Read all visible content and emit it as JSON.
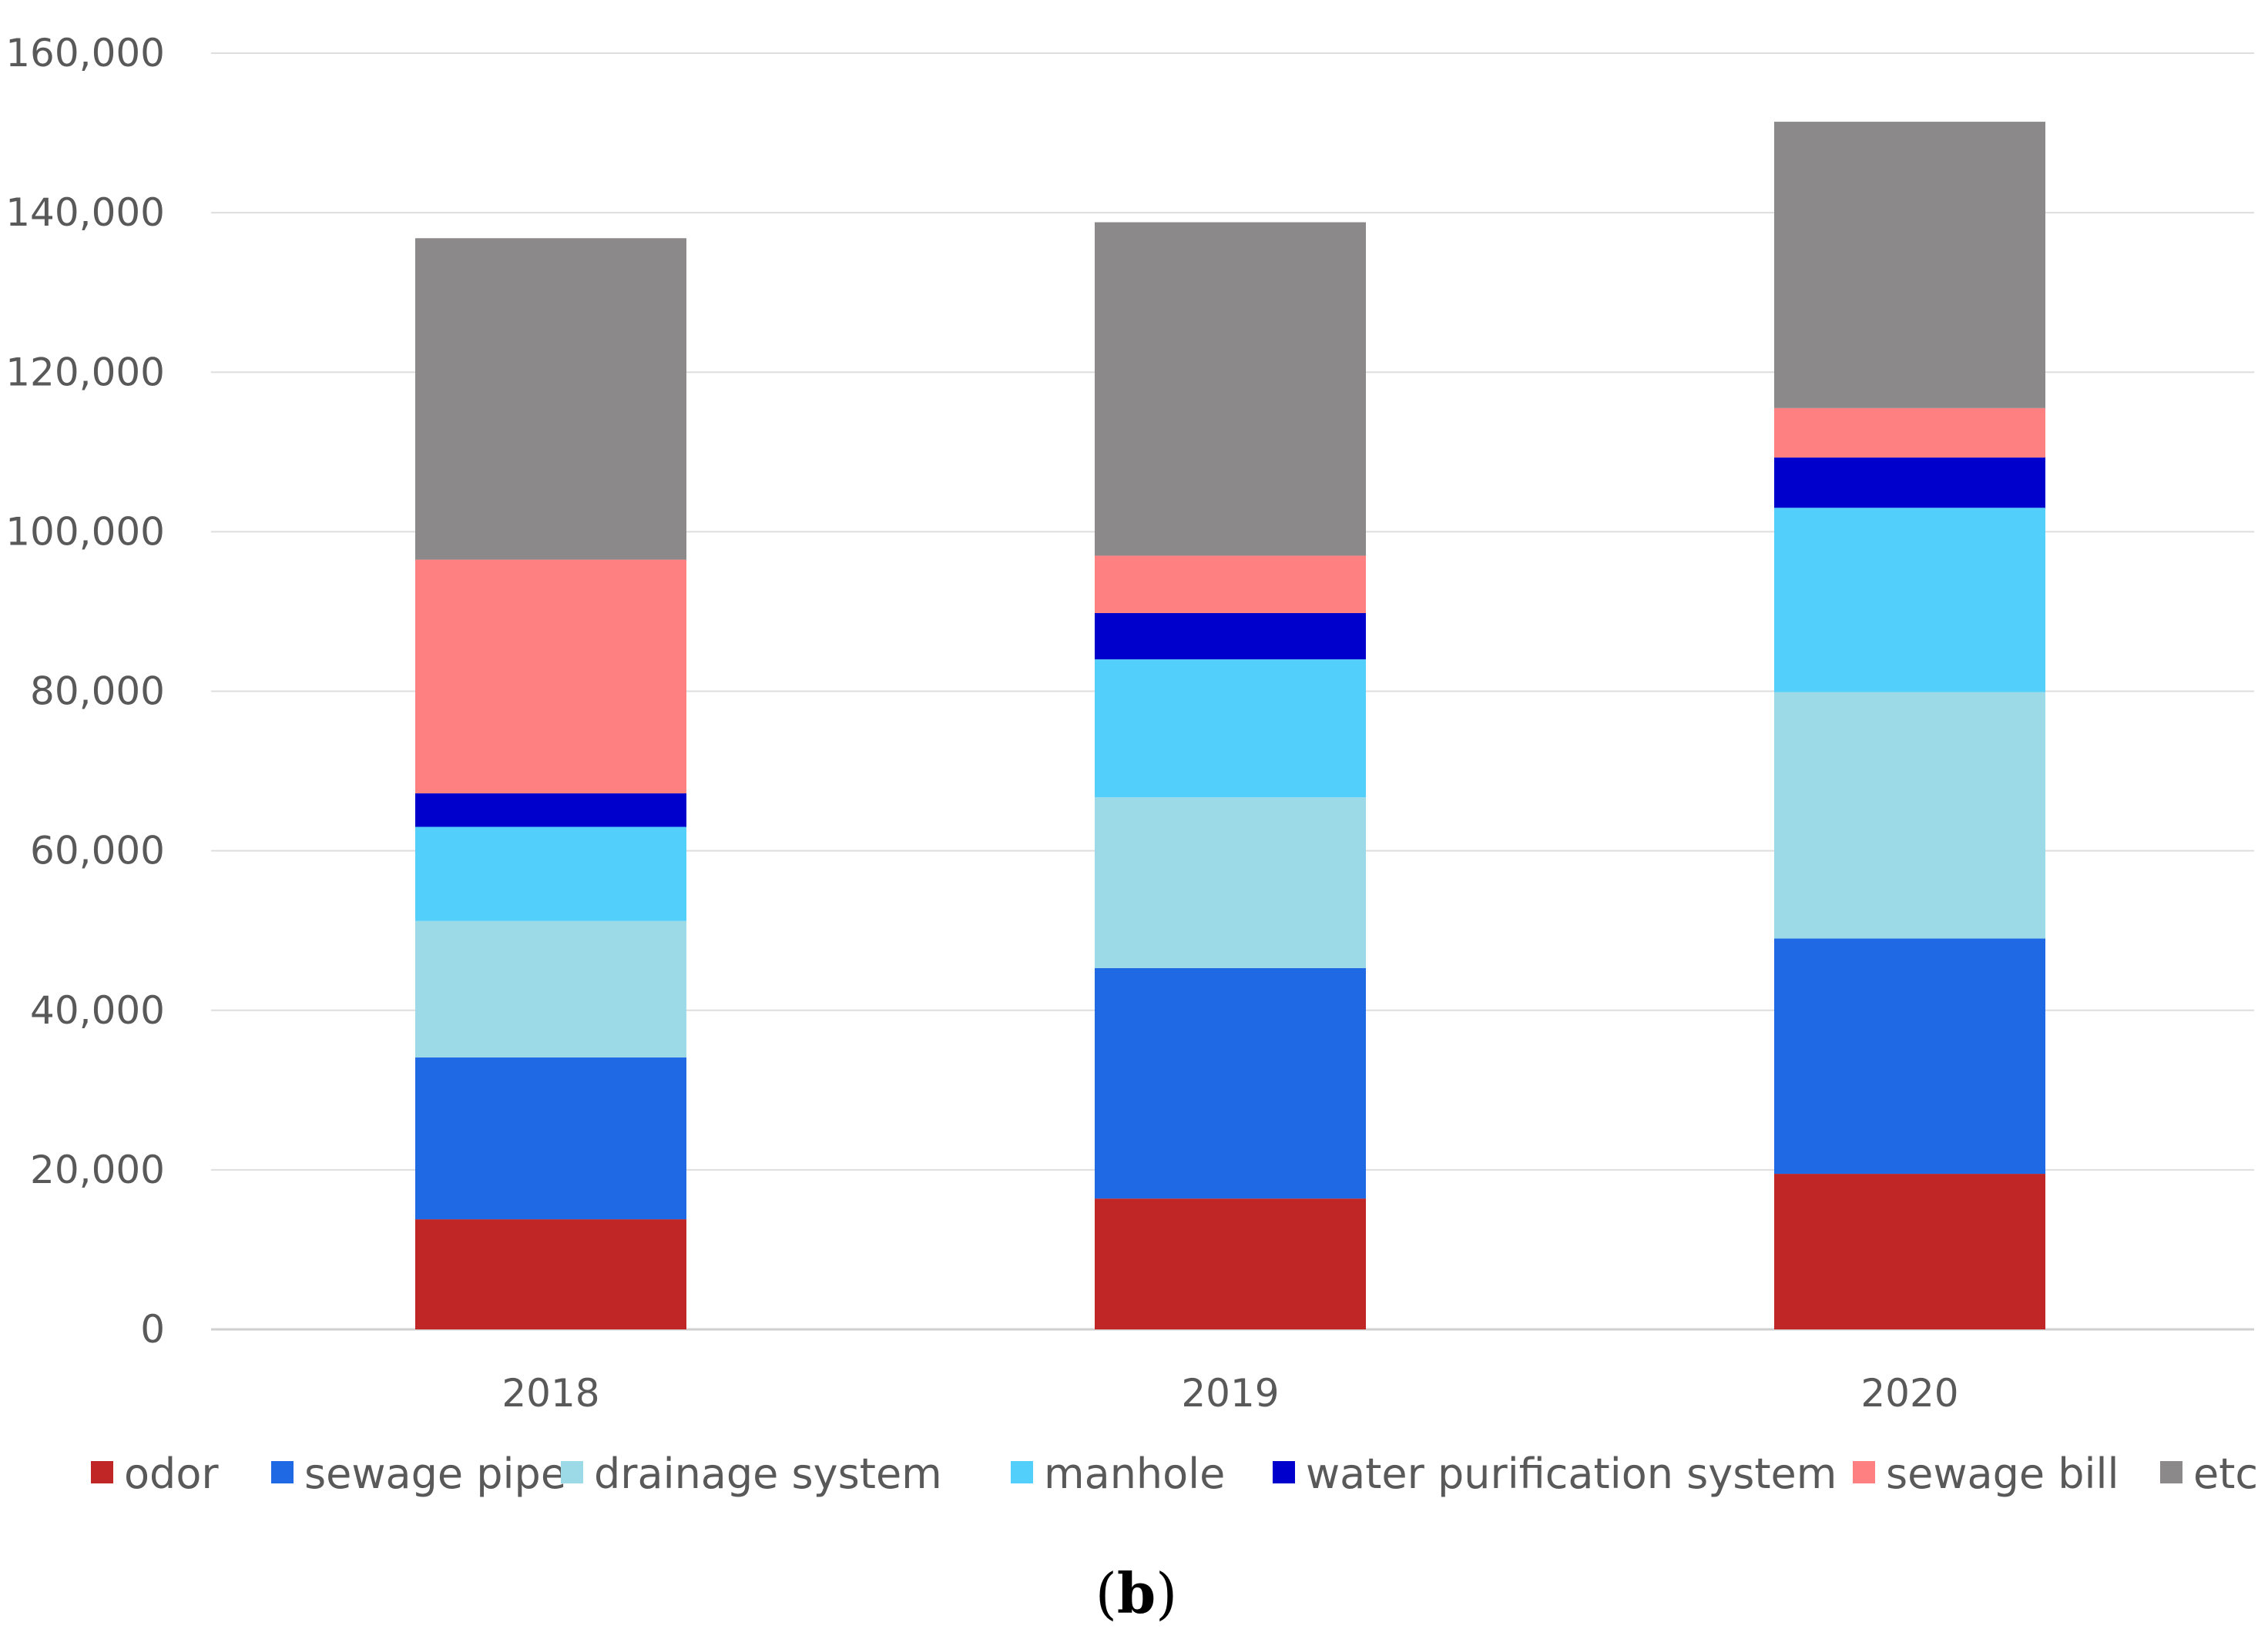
{
  "chart_data": {
    "type": "bar",
    "stacked": true,
    "title": "",
    "xlabel": "",
    "ylabel": "",
    "categories": [
      "2018",
      "2019",
      "2020"
    ],
    "series": [
      {
        "name": "odor",
        "color": "#C02626",
        "values": [
          13800,
          16400,
          19500
        ]
      },
      {
        "name": "sewage pipe",
        "color": "#1F69E4",
        "values": [
          20300,
          28900,
          29500
        ]
      },
      {
        "name": "drainage system",
        "color": "#9BDAE6",
        "values": [
          17100,
          21400,
          30900
        ]
      },
      {
        "name": "manhole",
        "color": "#53CFFB",
        "values": [
          11800,
          17300,
          23100
        ]
      },
      {
        "name": "water purification system",
        "color": "#0000CC",
        "values": [
          4200,
          5800,
          6300
        ]
      },
      {
        "name": "sewage bill",
        "color": "#FF8080",
        "values": [
          29300,
          7200,
          6200
        ]
      },
      {
        "name": "etc",
        "color": "#8C898A",
        "values": [
          40300,
          41800,
          35900
        ]
      }
    ],
    "ylim": [
      0,
      160000
    ],
    "yticks": [
      0,
      20000,
      40000,
      60000,
      80000,
      100000,
      120000,
      140000,
      160000
    ],
    "ytick_labels": [
      "0",
      "20,000",
      "40,000",
      "60,000",
      "80,000",
      "100,000",
      "120,000",
      "140,000",
      "160,000"
    ],
    "grid": true,
    "legend_position": "bottom"
  },
  "caption": {
    "open": "(",
    "letter": "b",
    "close": ")"
  }
}
